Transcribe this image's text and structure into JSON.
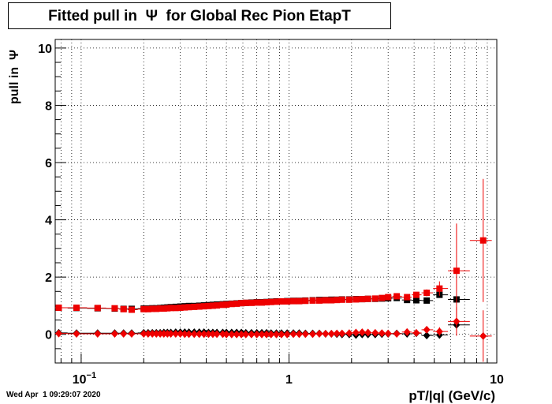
{
  "chart_data": {
    "type": "scatter",
    "title": "Fitted pull in  Ψ  for Global Rec Pion EtapT",
    "xlabel": "pT/|q| (GeV/c)",
    "ylabel": "pull in  Ψ",
    "xscale": "log",
    "xlim": [
      0.075,
      10
    ],
    "ylim": [
      -1,
      10.3
    ],
    "yticks": [
      0,
      2,
      4,
      6,
      8,
      10
    ],
    "xticks": [
      {
        "value": 0.1,
        "label": "10",
        "sup": "−1"
      },
      {
        "value": 1,
        "label": "1"
      },
      {
        "value": 10,
        "label": "10"
      }
    ],
    "grid": true,
    "x": [
      0.078,
      0.095,
      0.12,
      0.145,
      0.16,
      0.175,
      0.2,
      0.21,
      0.22,
      0.23,
      0.24,
      0.25,
      0.26,
      0.27,
      0.285,
      0.3,
      0.315,
      0.33,
      0.35,
      0.37,
      0.39,
      0.41,
      0.43,
      0.45,
      0.48,
      0.5,
      0.53,
      0.56,
      0.59,
      0.62,
      0.66,
      0.7,
      0.74,
      0.78,
      0.82,
      0.87,
      0.92,
      0.98,
      1.05,
      1.12,
      1.2,
      1.3,
      1.4,
      1.5,
      1.6,
      1.7,
      1.8,
      1.95,
      2.1,
      2.25,
      2.4,
      2.6,
      2.8,
      3.0,
      3.3,
      3.7,
      4.1,
      4.6,
      5.3,
      6.4,
      8.6
    ],
    "series": [
      {
        "marker": "square",
        "color": "#000000",
        "values": [
          0.93,
          0.92,
          0.91,
          0.9,
          0.89,
          0.89,
          0.9,
          0.9,
          0.91,
          0.91,
          0.92,
          0.93,
          0.94,
          0.95,
          0.96,
          0.97,
          0.98,
          0.99,
          0.99,
          1.0,
          1.01,
          1.02,
          1.03,
          1.04,
          1.05,
          1.06,
          1.07,
          1.08,
          1.09,
          1.1,
          1.11,
          1.12,
          1.12,
          1.13,
          1.14,
          1.15,
          1.15,
          1.16,
          1.17,
          1.17,
          1.18,
          1.19,
          1.2,
          1.2,
          1.21,
          1.21,
          1.22,
          1.22,
          1.23,
          1.23,
          1.24,
          1.24,
          1.25,
          1.26,
          1.27,
          1.2,
          1.19,
          1.18,
          1.38,
          1.22,
          null
        ]
      },
      {
        "marker": "diamond",
        "color": "#000000",
        "values": [
          0.05,
          0.04,
          0.04,
          0.04,
          0.04,
          0.04,
          0.05,
          0.05,
          0.05,
          0.05,
          0.05,
          0.06,
          0.06,
          0.06,
          0.07,
          0.07,
          0.07,
          0.07,
          0.07,
          0.07,
          0.07,
          0.06,
          0.06,
          0.06,
          0.06,
          0.06,
          0.06,
          0.06,
          0.06,
          0.05,
          0.05,
          0.05,
          0.05,
          0.05,
          0.04,
          0.04,
          0.04,
          0.04,
          0.04,
          0.04,
          0.03,
          0.03,
          0.03,
          0.02,
          0.02,
          0.01,
          0.0,
          0.0,
          -0.02,
          0.0,
          0.0,
          0.0,
          0.01,
          0.02,
          0.03,
          0.02,
          0.04,
          -0.04,
          -0.02,
          0.33,
          null
        ]
      },
      {
        "marker": "square",
        "color": "#ee0000",
        "values": [
          0.93,
          0.93,
          0.92,
          0.91,
          0.88,
          0.86,
          0.88,
          0.88,
          0.89,
          0.89,
          0.9,
          0.9,
          0.91,
          0.92,
          0.92,
          0.93,
          0.94,
          0.95,
          0.96,
          0.97,
          0.98,
          0.99,
          1.0,
          1.01,
          1.03,
          1.04,
          1.06,
          1.07,
          1.09,
          1.1,
          1.1,
          1.11,
          1.11,
          1.12,
          1.13,
          1.14,
          1.15,
          1.15,
          1.16,
          1.16,
          1.17,
          1.18,
          1.18,
          1.19,
          1.19,
          1.2,
          1.21,
          1.21,
          1.22,
          1.23,
          1.24,
          1.25,
          1.27,
          1.3,
          1.33,
          1.3,
          1.38,
          1.45,
          1.6,
          2.22,
          3.28
        ]
      },
      {
        "marker": "diamond",
        "color": "#ee0000",
        "values": [
          0.03,
          0.02,
          0.02,
          0.02,
          0.02,
          0.02,
          0.02,
          0.02,
          0.02,
          0.02,
          0.02,
          0.02,
          0.02,
          0.02,
          0.02,
          0.02,
          0.01,
          0.01,
          0.01,
          0.01,
          0.01,
          0.01,
          0.01,
          0.01,
          0.01,
          0.0,
          0.0,
          0.0,
          0.0,
          0.0,
          0.0,
          0.0,
          0.0,
          0.0,
          0.0,
          0.0,
          0.0,
          0.0,
          0.01,
          0.01,
          0.01,
          0.01,
          0.02,
          0.02,
          0.02,
          0.03,
          0.03,
          0.04,
          0.06,
          0.07,
          0.06,
          0.05,
          0.04,
          0.03,
          0.02,
          0.08,
          0.05,
          0.16,
          0.1,
          0.45,
          -0.06
        ]
      }
    ],
    "errors": {
      "y_red_square": [
        0,
        0,
        0,
        0,
        0,
        0,
        0,
        0,
        0,
        0,
        0,
        0,
        0,
        0,
        0,
        0,
        0,
        0,
        0,
        0,
        0,
        0,
        0,
        0,
        0,
        0,
        0,
        0,
        0,
        0,
        0,
        0,
        0,
        0,
        0,
        0,
        0,
        0,
        0,
        0,
        0,
        0,
        0,
        0,
        0,
        0,
        0,
        0,
        0,
        0,
        0,
        0,
        0,
        0,
        0,
        0.08,
        0.1,
        0.12,
        0.25,
        1.65,
        2.15
      ],
      "y_red_diamond": [
        0,
        0,
        0,
        0,
        0,
        0,
        0,
        0,
        0,
        0,
        0,
        0,
        0,
        0,
        0,
        0,
        0,
        0,
        0,
        0,
        0,
        0,
        0,
        0,
        0,
        0,
        0,
        0,
        0,
        0,
        0,
        0,
        0,
        0,
        0,
        0,
        0,
        0,
        0,
        0,
        0,
        0,
        0,
        0,
        0,
        0,
        0,
        0,
        0,
        0,
        0,
        0,
        0,
        0,
        0,
        0.05,
        0.06,
        0.08,
        0.15,
        0.5,
        0.9
      ]
    }
  },
  "timestamp": "Wed Apr  1 09:29:07 2020"
}
